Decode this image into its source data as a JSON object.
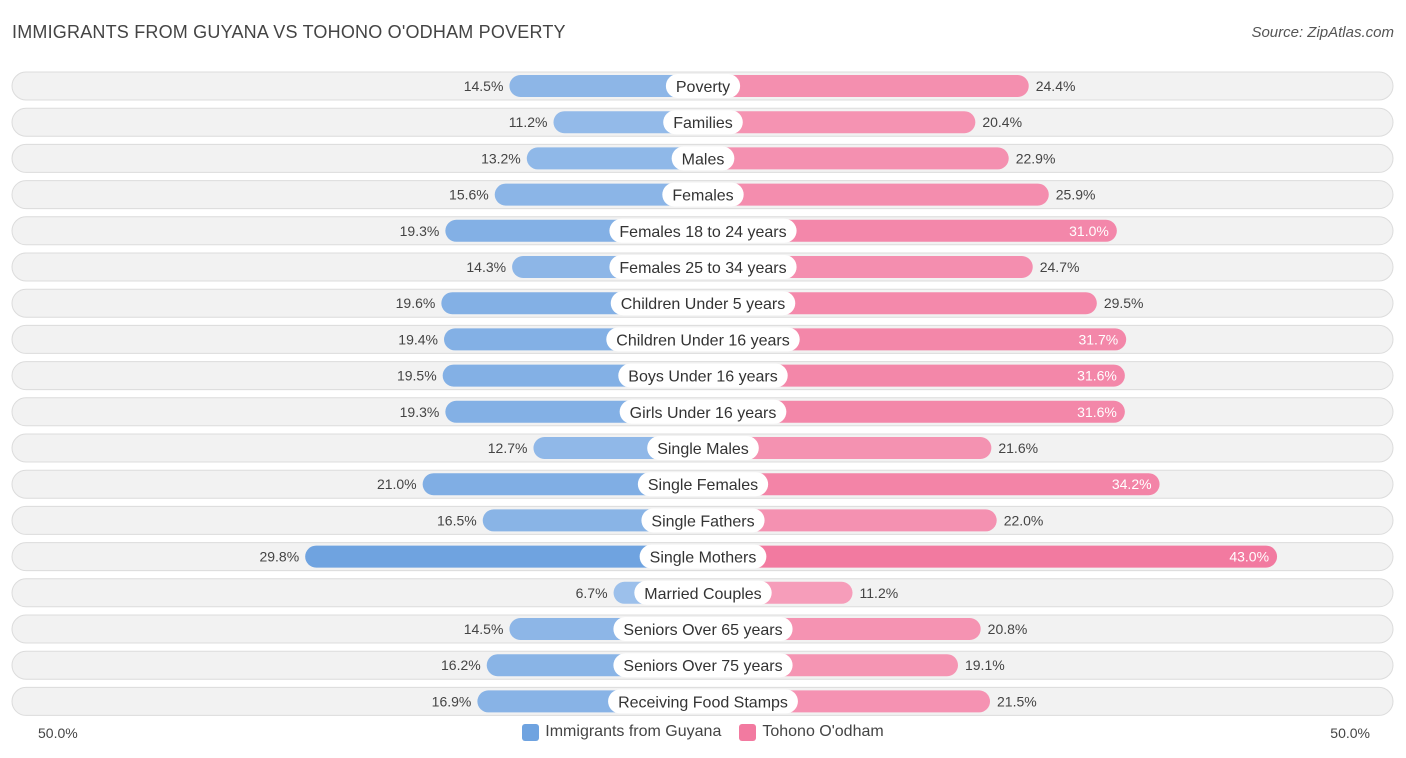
{
  "title": "IMMIGRANTS FROM GUYANA VS TOHONO O'ODHAM POVERTY",
  "source": "Source: ZipAtlas.com",
  "colors": {
    "left": "#6fa3e0",
    "left_light": "#a9c8ee",
    "right": "#f27aa0",
    "right_light": "#f7aac3"
  },
  "chart_data": {
    "type": "bar",
    "orientation": "horizontal-diverging",
    "title": "IMMIGRANTS FROM GUYANA VS TOHONO O'ODHAM POVERTY",
    "axis_left_label": "50.0%",
    "axis_right_label": "50.0%",
    "xlim": [
      0,
      50
    ],
    "categories": [
      "Poverty",
      "Families",
      "Males",
      "Females",
      "Females 18 to 24 years",
      "Females 25 to 34 years",
      "Children Under 5 years",
      "Children Under 16 years",
      "Boys Under 16 years",
      "Girls Under 16 years",
      "Single Males",
      "Single Females",
      "Single Fathers",
      "Single Mothers",
      "Married Couples",
      "Seniors Over 65 years",
      "Seniors Over 75 years",
      "Receiving Food Stamps"
    ],
    "series": [
      {
        "name": "Immigrants from Guyana",
        "values": [
          14.5,
          11.2,
          13.2,
          15.6,
          19.3,
          14.3,
          19.6,
          19.4,
          19.5,
          19.3,
          12.7,
          21.0,
          16.5,
          29.8,
          6.7,
          14.5,
          16.2,
          16.9
        ],
        "labels": [
          "14.5%",
          "11.2%",
          "13.2%",
          "15.6%",
          "19.3%",
          "14.3%",
          "19.6%",
          "19.4%",
          "19.5%",
          "19.3%",
          "12.7%",
          "21.0%",
          "16.5%",
          "29.8%",
          "6.7%",
          "14.5%",
          "16.2%",
          "16.9%"
        ]
      },
      {
        "name": "Tohono O'odham",
        "values": [
          24.4,
          20.4,
          22.9,
          25.9,
          31.0,
          24.7,
          29.5,
          31.7,
          31.6,
          31.6,
          21.6,
          34.2,
          22.0,
          43.0,
          11.2,
          20.8,
          19.1,
          21.5
        ],
        "labels": [
          "24.4%",
          "20.4%",
          "22.9%",
          "25.9%",
          "31.0%",
          "24.7%",
          "29.5%",
          "31.7%",
          "31.6%",
          "31.6%",
          "21.6%",
          "34.2%",
          "22.0%",
          "43.0%",
          "11.2%",
          "20.8%",
          "19.1%",
          "21.5%"
        ]
      }
    ]
  },
  "legend": {
    "left_label": "Immigrants from Guyana",
    "right_label": "Tohono O'odham"
  }
}
